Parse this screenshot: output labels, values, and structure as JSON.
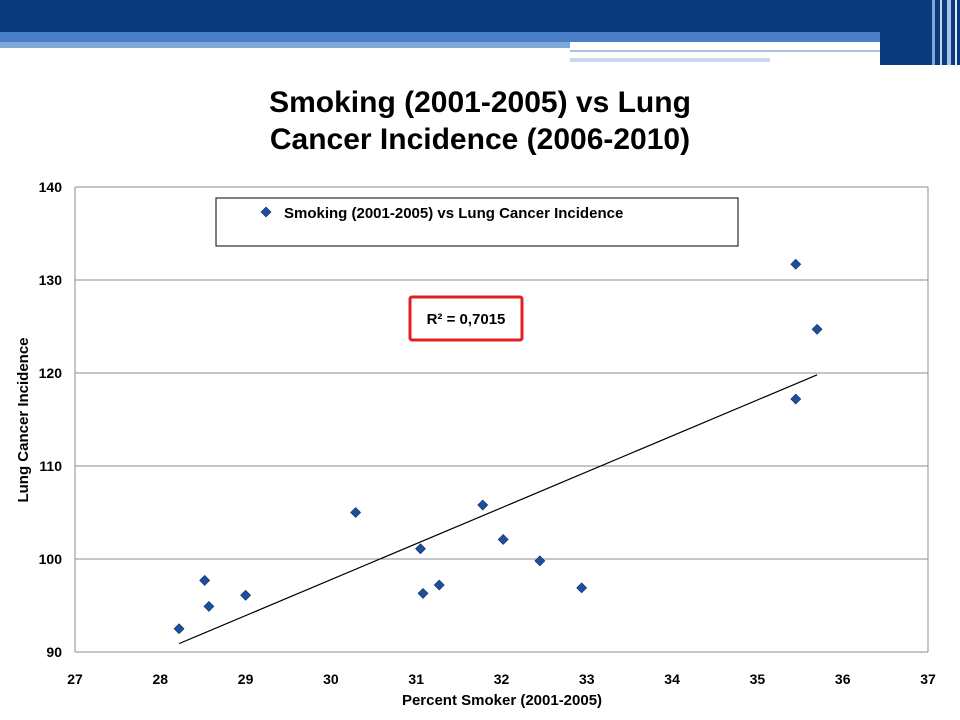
{
  "colors": {
    "banner_dark": "#0B3B7F",
    "banner_light": "#4A7FC8",
    "marker": "#1F4E9C",
    "r2_box": "#E02020"
  },
  "chart_data": {
    "type": "scatter",
    "title_lines": [
      "Smoking (2001-2005) vs Lung",
      "Cancer Incidence (2006-2010)"
    ],
    "xlabel": "Percent Smoker (2001-2005)",
    "ylabel": "Lung Cancer Incidence",
    "xlim": [
      27,
      37
    ],
    "ylim": [
      90,
      140
    ],
    "x_ticks": [
      27,
      28,
      29,
      30,
      31,
      32,
      33,
      34,
      35,
      36,
      37
    ],
    "y_ticks": [
      90,
      100,
      110,
      120,
      130,
      140
    ],
    "grid": "horizontal",
    "legend": {
      "placement": "top",
      "label": "Smoking (2001-2005) vs Lung Cancer Incidence"
    },
    "series": [
      {
        "name": "Smoking (2001-2005) vs Lung Cancer Incidence",
        "points": [
          {
            "x": 28.22,
            "y": 92.5
          },
          {
            "x": 28.52,
            "y": 97.7
          },
          {
            "x": 28.57,
            "y": 94.9
          },
          {
            "x": 29.0,
            "y": 96.1
          },
          {
            "x": 30.29,
            "y": 105.0
          },
          {
            "x": 31.05,
            "y": 101.1
          },
          {
            "x": 31.08,
            "y": 96.3
          },
          {
            "x": 31.27,
            "y": 97.2
          },
          {
            "x": 31.78,
            "y": 105.8
          },
          {
            "x": 32.02,
            "y": 102.1
          },
          {
            "x": 32.45,
            "y": 99.8
          },
          {
            "x": 32.94,
            "y": 96.9
          },
          {
            "x": 35.45,
            "y": 131.7
          },
          {
            "x": 35.45,
            "y": 117.2
          },
          {
            "x": 35.7,
            "y": 124.7
          }
        ]
      }
    ],
    "trendline": {
      "x": [
        28.22,
        35.7
      ],
      "y": [
        90.9,
        119.8
      ]
    },
    "annotation": "R² = 0,7015"
  }
}
